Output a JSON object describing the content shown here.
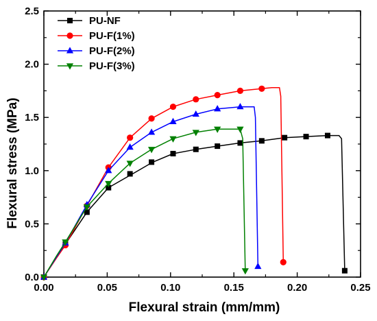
{
  "chart_data": {
    "type": "line",
    "title": "",
    "xlabel": "Flexural strain (mm/mm)",
    "ylabel": "Flexural stress (MPa)",
    "xlim": [
      0.0,
      0.25
    ],
    "ylim": [
      0.0,
      2.5
    ],
    "xticks": [
      "0.00",
      "0.05",
      "0.10",
      "0.15",
      "0.20",
      "0.25"
    ],
    "yticks": [
      "0.0",
      "0.5",
      "1.0",
      "1.5",
      "2.0",
      "2.5"
    ],
    "grid": false,
    "legend_position": "top-left",
    "series": [
      {
        "name": "PU-NF",
        "color": "#000000",
        "marker": "square",
        "x": [
          0.0,
          0.01,
          0.017,
          0.034,
          0.051,
          0.07,
          0.086,
          0.102,
          0.12,
          0.137,
          0.155,
          0.172,
          0.19,
          0.207,
          0.224,
          0.233,
          0.235,
          0.2375
        ],
        "y": [
          0.0,
          0.19,
          0.31,
          0.61,
          0.84,
          0.97,
          1.08,
          1.16,
          1.2,
          1.23,
          1.26,
          1.28,
          1.31,
          1.32,
          1.33,
          1.33,
          1.3,
          0.06
        ],
        "marker_x": [
          0.0,
          0.017,
          0.034,
          0.051,
          0.068,
          0.085,
          0.102,
          0.12,
          0.137,
          0.155,
          0.172,
          0.19,
          0.207,
          0.224,
          0.2375
        ],
        "marker_y": [
          0.0,
          0.31,
          0.61,
          0.84,
          0.97,
          1.08,
          1.16,
          1.2,
          1.23,
          1.26,
          1.28,
          1.31,
          1.32,
          1.33,
          0.06
        ]
      },
      {
        "name": "PU-F(1%)",
        "color": "#ff0000",
        "marker": "circle",
        "x": [
          0.0,
          0.01,
          0.017,
          0.034,
          0.051,
          0.068,
          0.085,
          0.102,
          0.12,
          0.137,
          0.155,
          0.172,
          0.18,
          0.186,
          0.187,
          0.189
        ],
        "y": [
          0.0,
          0.18,
          0.3,
          0.67,
          1.03,
          1.31,
          1.49,
          1.6,
          1.67,
          1.71,
          1.75,
          1.77,
          1.78,
          1.78,
          1.7,
          0.14
        ],
        "marker_x": [
          0.0,
          0.017,
          0.034,
          0.051,
          0.068,
          0.085,
          0.102,
          0.12,
          0.137,
          0.155,
          0.172,
          0.189
        ],
        "marker_y": [
          0.0,
          0.3,
          0.67,
          1.03,
          1.31,
          1.49,
          1.6,
          1.67,
          1.71,
          1.75,
          1.77,
          0.14
        ]
      },
      {
        "name": "PU-F(2%)",
        "color": "#0000ff",
        "marker": "triangle-up",
        "x": [
          0.0,
          0.01,
          0.017,
          0.034,
          0.051,
          0.068,
          0.085,
          0.102,
          0.12,
          0.137,
          0.155,
          0.163,
          0.166,
          0.167,
          0.169
        ],
        "y": [
          0.0,
          0.19,
          0.32,
          0.68,
          1.0,
          1.22,
          1.36,
          1.46,
          1.53,
          1.58,
          1.6,
          1.6,
          1.6,
          1.5,
          0.1
        ],
        "marker_x": [
          0.0,
          0.017,
          0.034,
          0.051,
          0.068,
          0.085,
          0.102,
          0.12,
          0.137,
          0.155,
          0.169
        ],
        "marker_y": [
          0.0,
          0.32,
          0.68,
          1.0,
          1.22,
          1.36,
          1.46,
          1.53,
          1.58,
          1.6,
          0.1
        ]
      },
      {
        "name": "PU-F(3%)",
        "color": "#008000",
        "marker": "triangle-down",
        "x": [
          0.0,
          0.01,
          0.017,
          0.034,
          0.051,
          0.068,
          0.085,
          0.102,
          0.12,
          0.137,
          0.15,
          0.155,
          0.157,
          0.159
        ],
        "y": [
          0.0,
          0.2,
          0.33,
          0.66,
          0.88,
          1.07,
          1.2,
          1.3,
          1.36,
          1.39,
          1.39,
          1.39,
          1.3,
          0.06
        ],
        "marker_x": [
          0.0,
          0.017,
          0.034,
          0.051,
          0.068,
          0.085,
          0.102,
          0.12,
          0.137,
          0.155,
          0.159
        ],
        "marker_y": [
          0.0,
          0.33,
          0.66,
          0.88,
          1.07,
          1.2,
          1.3,
          1.36,
          1.39,
          1.39,
          0.06
        ]
      }
    ]
  }
}
